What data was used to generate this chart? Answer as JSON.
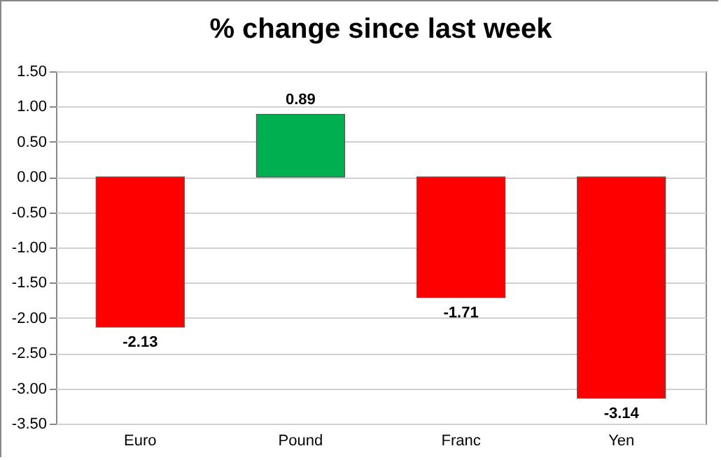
{
  "chart_data": {
    "type": "bar",
    "title": "% change since last week",
    "categories": [
      "Euro",
      "Pound",
      "Franc",
      "Yen"
    ],
    "values": [
      -2.13,
      0.89,
      -1.71,
      -3.14
    ],
    "colors": [
      "#ff0000",
      "#00b050",
      "#ff0000",
      "#ff0000"
    ],
    "ylim": [
      -3.5,
      1.5
    ],
    "yticks": [
      {
        "value": -3.5,
        "label": "-3.50"
      },
      {
        "value": -3,
        "label": "-3.00"
      },
      {
        "value": -2.5,
        "label": "-2.50"
      },
      {
        "value": -2,
        "label": "-2.00"
      },
      {
        "value": -1.5,
        "label": "-1.50"
      },
      {
        "value": -1,
        "label": "-1.00"
      },
      {
        "value": -0.5,
        "label": "-0.50"
      },
      {
        "value": 0,
        "label": "0.00"
      },
      {
        "value": 0.5,
        "label": "0.50"
      },
      {
        "value": 1,
        "label": "1.00"
      },
      {
        "value": 1.5,
        "label": "1.50"
      }
    ],
    "grid": true,
    "data_labels": true
  }
}
